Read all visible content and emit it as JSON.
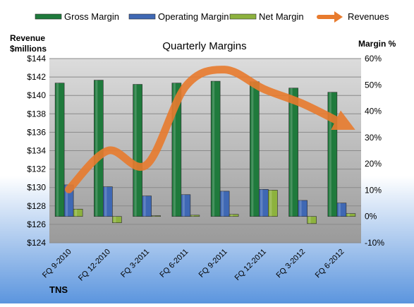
{
  "chart_data": {
    "type": "bar+line",
    "title": "Quarterly Margins",
    "source_label": "TNS",
    "left_axis": {
      "label_line1": "Revenue",
      "label_line2": "$millions",
      "min": 124,
      "max": 144,
      "step": 2,
      "tick_prefix": "$"
    },
    "right_axis": {
      "label": "Margin %",
      "min": -10,
      "max": 60,
      "step": 10,
      "tick_suffix": "%"
    },
    "categories": [
      "FQ 9-2010",
      "FQ 12-2010",
      "FQ 3-2011",
      "FQ 6-2011",
      "FQ 9-2011",
      "FQ 12-2011",
      "FQ 3-2012",
      "FQ 6-2012"
    ],
    "series": [
      {
        "name": "Gross Margin",
        "axis": "right",
        "kind": "bar",
        "color": "#1f7a3c",
        "values": [
          50.7,
          51.8,
          50.2,
          50.7,
          51.4,
          51.2,
          48.8,
          47.2
        ]
      },
      {
        "name": "Operating Margin",
        "axis": "right",
        "kind": "bar",
        "color": "#3f68b4",
        "values": [
          12.0,
          11.3,
          7.8,
          8.3,
          9.6,
          10.3,
          6.1,
          5.1
        ]
      },
      {
        "name": "Net Margin",
        "axis": "right",
        "kind": "bar",
        "color": "#8db23e",
        "values": [
          2.8,
          -2.4,
          0.3,
          0.5,
          0.8,
          10.0,
          -2.7,
          1.1
        ]
      },
      {
        "name": "Revenues",
        "axis": "left",
        "kind": "line",
        "color": "#e87b2e",
        "values": [
          129.8,
          134.0,
          132.5,
          141.0,
          142.8,
          140.7,
          139.1,
          137.0
        ]
      }
    ],
    "legend_position": "top",
    "grid": true
  }
}
